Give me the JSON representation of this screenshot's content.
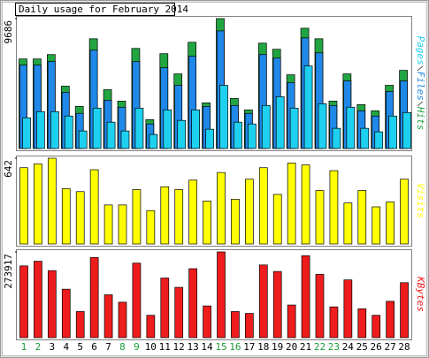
{
  "chart_data": [
    {
      "type": "grouped-overlap-bar",
      "title": "Daily usage for February 2014",
      "ylim": [
        0,
        9686
      ],
      "yticks": [
        9686
      ],
      "series": [
        {
          "name": "Hits",
          "color": "#21a541",
          "values": [
            6675,
            6675,
            7003,
            4647,
            3141,
            8181,
            4385,
            3534,
            7461,
            2160,
            7068,
            5563,
            7919,
            3403,
            9686,
            3730,
            2880,
            7853,
            7396,
            5497,
            8966,
            8181,
            3534,
            5563,
            3272,
            2814,
            4712,
            5825
          ]
        },
        {
          "name": "Files",
          "color": "#1f88e8",
          "values": [
            6217,
            6217,
            6479,
            4188,
            2618,
            7330,
            3600,
            3076,
            6479,
            1832,
            6021,
            4712,
            6872,
            3141,
            8770,
            3207,
            2618,
            7003,
            6741,
            4908,
            8246,
            7134,
            3207,
            5039,
            2814,
            2421,
            4254,
            5039
          ]
        },
        {
          "name": "Pages",
          "color": "#1ed0f0",
          "values": [
            2290,
            2749,
            2749,
            2421,
            1309,
            3010,
            1963,
            1309,
            3010,
            1047,
            2880,
            2094,
            2880,
            1440,
            4712,
            1963,
            1832,
            3207,
            3861,
            3010,
            6152,
            3338,
            1505,
            3076,
            1505,
            1243,
            2421,
            2683
          ]
        }
      ]
    },
    {
      "type": "bar",
      "ylim": [
        0,
        642
      ],
      "yticks": [
        642
      ],
      "series": [
        {
          "name": "Visits",
          "color": "#ffff00",
          "values": [
            571,
            599,
            642,
            414,
            392,
            556,
            292,
            292,
            407,
            250,
            428,
            407,
            478,
            321,
            535,
            335,
            485,
            571,
            371,
            606,
            592,
            400,
            549,
            307,
            400,
            278,
            314,
            485
          ]
        }
      ]
    },
    {
      "type": "bar",
      "ylim": [
        0,
        273917
      ],
      "yticks": [
        273917
      ],
      "categories": [
        "1",
        "2",
        "3",
        "4",
        "5",
        "6",
        "7",
        "8",
        "9",
        "10",
        "11",
        "12",
        "13",
        "14",
        "15",
        "16",
        "17",
        "18",
        "19",
        "20",
        "21",
        "22",
        "23",
        "24",
        "25",
        "26",
        "27",
        "28"
      ],
      "category_colors": [
        "#1a9a3a",
        "#1a9a3a",
        "#000000",
        "#000000",
        "#000000",
        "#000000",
        "#000000",
        "#1a9a3a",
        "#1a9a3a",
        "#000000",
        "#000000",
        "#000000",
        "#000000",
        "#000000",
        "#1a9a3a",
        "#1a9a3a",
        "#000000",
        "#000000",
        "#000000",
        "#000000",
        "#000000",
        "#1a9a3a",
        "#1a9a3a",
        "#000000",
        "#000000",
        "#000000",
        "#000000",
        "#000000"
      ],
      "series": [
        {
          "name": "KBytes",
          "color": "#ee1c1c",
          "values": [
            229250,
            244130,
            214370,
            154850,
            83430,
            256030,
            137000,
            113200,
            238180,
            71520,
            190560,
            160800,
            220320,
            101300,
            273917,
            83430,
            77480,
            232230,
            211400,
            104280,
            262000,
            202470,
            98320,
            184600,
            92370,
            71520,
            116180,
            175680
          ]
        }
      ]
    }
  ]
}
